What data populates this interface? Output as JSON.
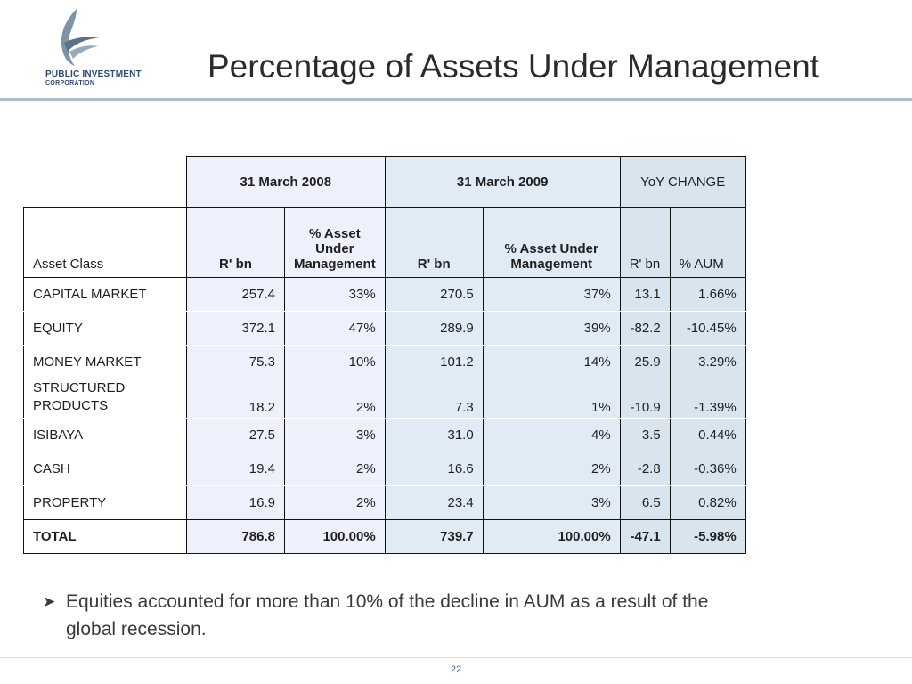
{
  "logo": {
    "name": "PUBLIC INVESTMENT",
    "sub": "CORPORATION"
  },
  "title": "Percentage of Assets Under Management",
  "table": {
    "period_2008": "31 March 2008",
    "period_2009": "31 March 2009",
    "yoy": "YoY CHANGE",
    "col_asset_class": "Asset Class",
    "col_rbn_2008": "R' bn",
    "col_pct_2008": "% Asset Under Management",
    "col_rbn_2009": "R' bn",
    "col_pct_2009": "% Asset Under Management",
    "col_rbn_yoy": "R' bn",
    "col_pct_yoy": "% AUM",
    "rows": [
      {
        "asset": "CAPITAL MARKET",
        "rbn2008": "257.4",
        "pct2008": "33%",
        "rbn2009": "270.5",
        "pct2009": "37%",
        "rbnyoy": "13.1",
        "pctyoy": "1.66%"
      },
      {
        "asset": "EQUITY",
        "rbn2008": "372.1",
        "pct2008": "47%",
        "rbn2009": "289.9",
        "pct2009": "39%",
        "rbnyoy": "-82.2",
        "pctyoy": "-10.45%"
      },
      {
        "asset": "MONEY MARKET",
        "rbn2008": "75.3",
        "pct2008": "10%",
        "rbn2009": "101.2",
        "pct2009": "14%",
        "rbnyoy": "25.9",
        "pctyoy": "3.29%"
      },
      {
        "asset": "STRUCTURED PRODUCTS",
        "rbn2008": "18.2",
        "pct2008": "2%",
        "rbn2009": "7.3",
        "pct2009": "1%",
        "rbnyoy": "-10.9",
        "pctyoy": "-1.39%"
      },
      {
        "asset": "ISIBAYA",
        "rbn2008": "27.5",
        "pct2008": "3%",
        "rbn2009": "31.0",
        "pct2009": "4%",
        "rbnyoy": "3.5",
        "pctyoy": "0.44%"
      },
      {
        "asset": "CASH",
        "rbn2008": "19.4",
        "pct2008": "2%",
        "rbn2009": "16.6",
        "pct2009": "2%",
        "rbnyoy": "-2.8",
        "pctyoy": "-0.36%"
      },
      {
        "asset": "PROPERTY",
        "rbn2008": "16.9",
        "pct2008": "2%",
        "rbn2009": "23.4",
        "pct2009": "3%",
        "rbnyoy": "6.5",
        "pctyoy": "0.82%"
      }
    ],
    "total": {
      "asset": "TOTAL",
      "rbn2008": "786.8",
      "pct2008": "100.00%",
      "rbn2009": "739.7",
      "pct2009": "100.00%",
      "rbnyoy": "-47.1",
      "pctyoy": "-5.98%"
    }
  },
  "bullet": "Equities accounted for more than 10% of the decline in AUM as a result of the global recession.",
  "page_number": "22",
  "colors": {
    "title_text": "#2b2b2b",
    "rule": "#a9bed0",
    "period_2008_bg": "#eef1fb",
    "period_2009_bg": "#e1ebf5",
    "yoy_bg": "#d8e5ef",
    "logo_text": "#2e4a73"
  }
}
